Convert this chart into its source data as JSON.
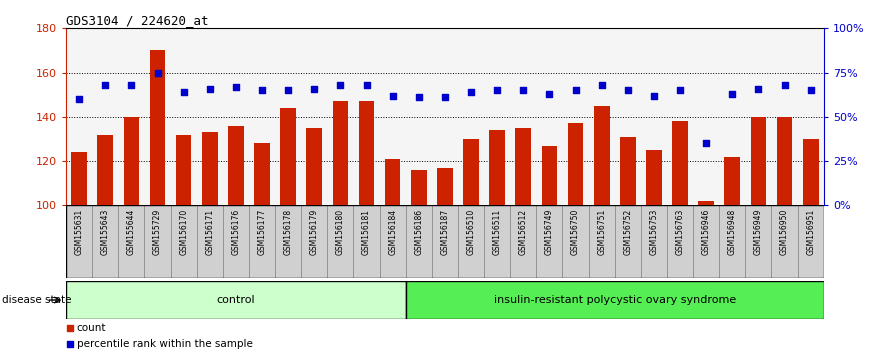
{
  "title": "GDS3104 / 224620_at",
  "samples": [
    "GSM155631",
    "GSM155643",
    "GSM155644",
    "GSM155729",
    "GSM156170",
    "GSM156171",
    "GSM156176",
    "GSM156177",
    "GSM156178",
    "GSM156179",
    "GSM156180",
    "GSM156181",
    "GSM156184",
    "GSM156186",
    "GSM156187",
    "GSM156510",
    "GSM156511",
    "GSM156512",
    "GSM156749",
    "GSM156750",
    "GSM156751",
    "GSM156752",
    "GSM156753",
    "GSM156763",
    "GSM156946",
    "GSM156948",
    "GSM156949",
    "GSM156950",
    "GSM156951"
  ],
  "counts": [
    124,
    132,
    140,
    170,
    132,
    133,
    136,
    128,
    144,
    135,
    147,
    147,
    121,
    116,
    117,
    130,
    134,
    135,
    127,
    137,
    145,
    131,
    125,
    138,
    102,
    122,
    140,
    140,
    130
  ],
  "percentile_ranks": [
    60,
    68,
    68,
    75,
    64,
    66,
    67,
    65,
    65,
    66,
    68,
    68,
    62,
    61,
    61,
    64,
    65,
    65,
    63,
    65,
    68,
    65,
    62,
    65,
    35,
    63,
    66,
    68,
    65
  ],
  "n_control": 13,
  "control_label": "control",
  "disease_label": "insulin-resistant polycystic ovary syndrome",
  "ylim_left": [
    100,
    180
  ],
  "ylim_right": [
    0,
    100
  ],
  "yticks_left": [
    100,
    120,
    140,
    160,
    180
  ],
  "yticks_right": [
    0,
    25,
    50,
    75,
    100
  ],
  "ytick_labels_right": [
    "0%",
    "25%",
    "50%",
    "75%",
    "100%"
  ],
  "bar_color": "#cc2200",
  "dot_color": "#0000cc",
  "grid_color": "#000000",
  "plot_bg": "#f5f5f5",
  "xtick_bg": "#d0d0d0",
  "control_bg": "#ccffcc",
  "disease_bg": "#55ee55",
  "label_color_left": "#cc2200",
  "label_color_right": "#0000cc"
}
